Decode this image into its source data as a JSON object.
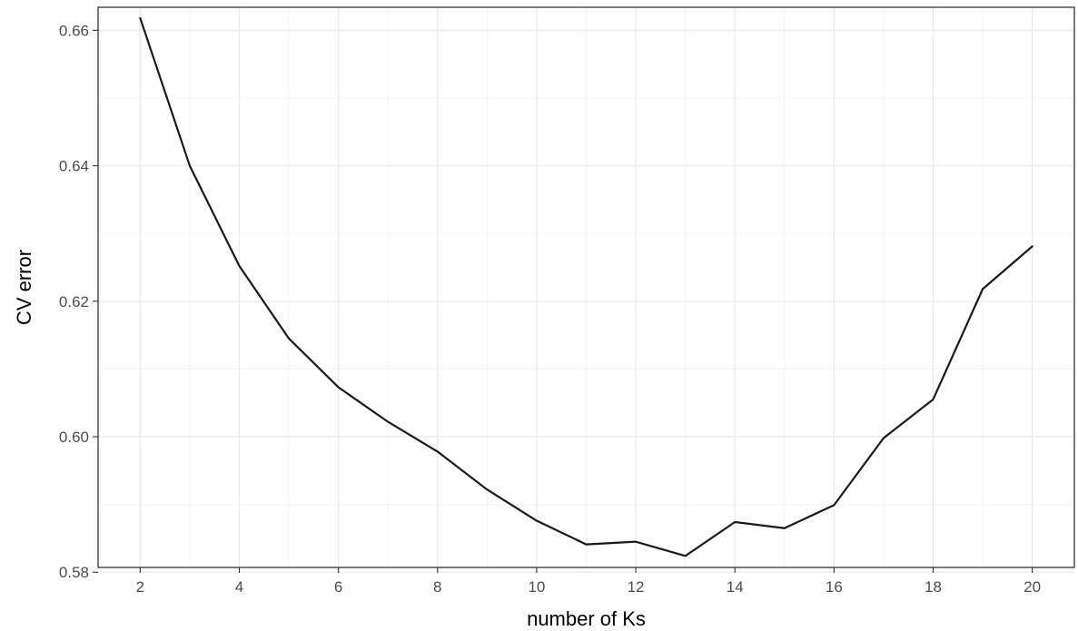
{
  "chart_data": {
    "type": "line",
    "title": "",
    "xlabel": "number of Ks",
    "ylabel": "CV error",
    "xlim": [
      1.15,
      20.85
    ],
    "ylim": [
      0.5807,
      0.6634
    ],
    "x_ticks": [
      2,
      4,
      6,
      8,
      10,
      12,
      14,
      16,
      18,
      20
    ],
    "x_tick_labels": [
      "2",
      "4",
      "6",
      "8",
      "10",
      "12",
      "14",
      "16",
      "18",
      "20"
    ],
    "y_ticks": [
      0.58,
      0.6,
      0.62,
      0.64,
      0.66
    ],
    "y_tick_labels": [
      "0.58",
      "0.60",
      "0.62",
      "0.64",
      "0.66"
    ],
    "grid": true,
    "line_color": "#1a1a1a",
    "series": [
      {
        "x": [
          2,
          3,
          4,
          5,
          6,
          7,
          8,
          9,
          10,
          11,
          12,
          13,
          14,
          15,
          16,
          17,
          18,
          19,
          20
        ],
        "values": [
          0.6618,
          0.64,
          0.6252,
          0.6145,
          0.6073,
          0.6022,
          0.5978,
          0.5922,
          0.5876,
          0.5841,
          0.5845,
          0.5824,
          0.5874,
          0.5865,
          0.5899,
          0.5998,
          0.6055,
          0.6218,
          0.6281
        ]
      }
    ]
  }
}
